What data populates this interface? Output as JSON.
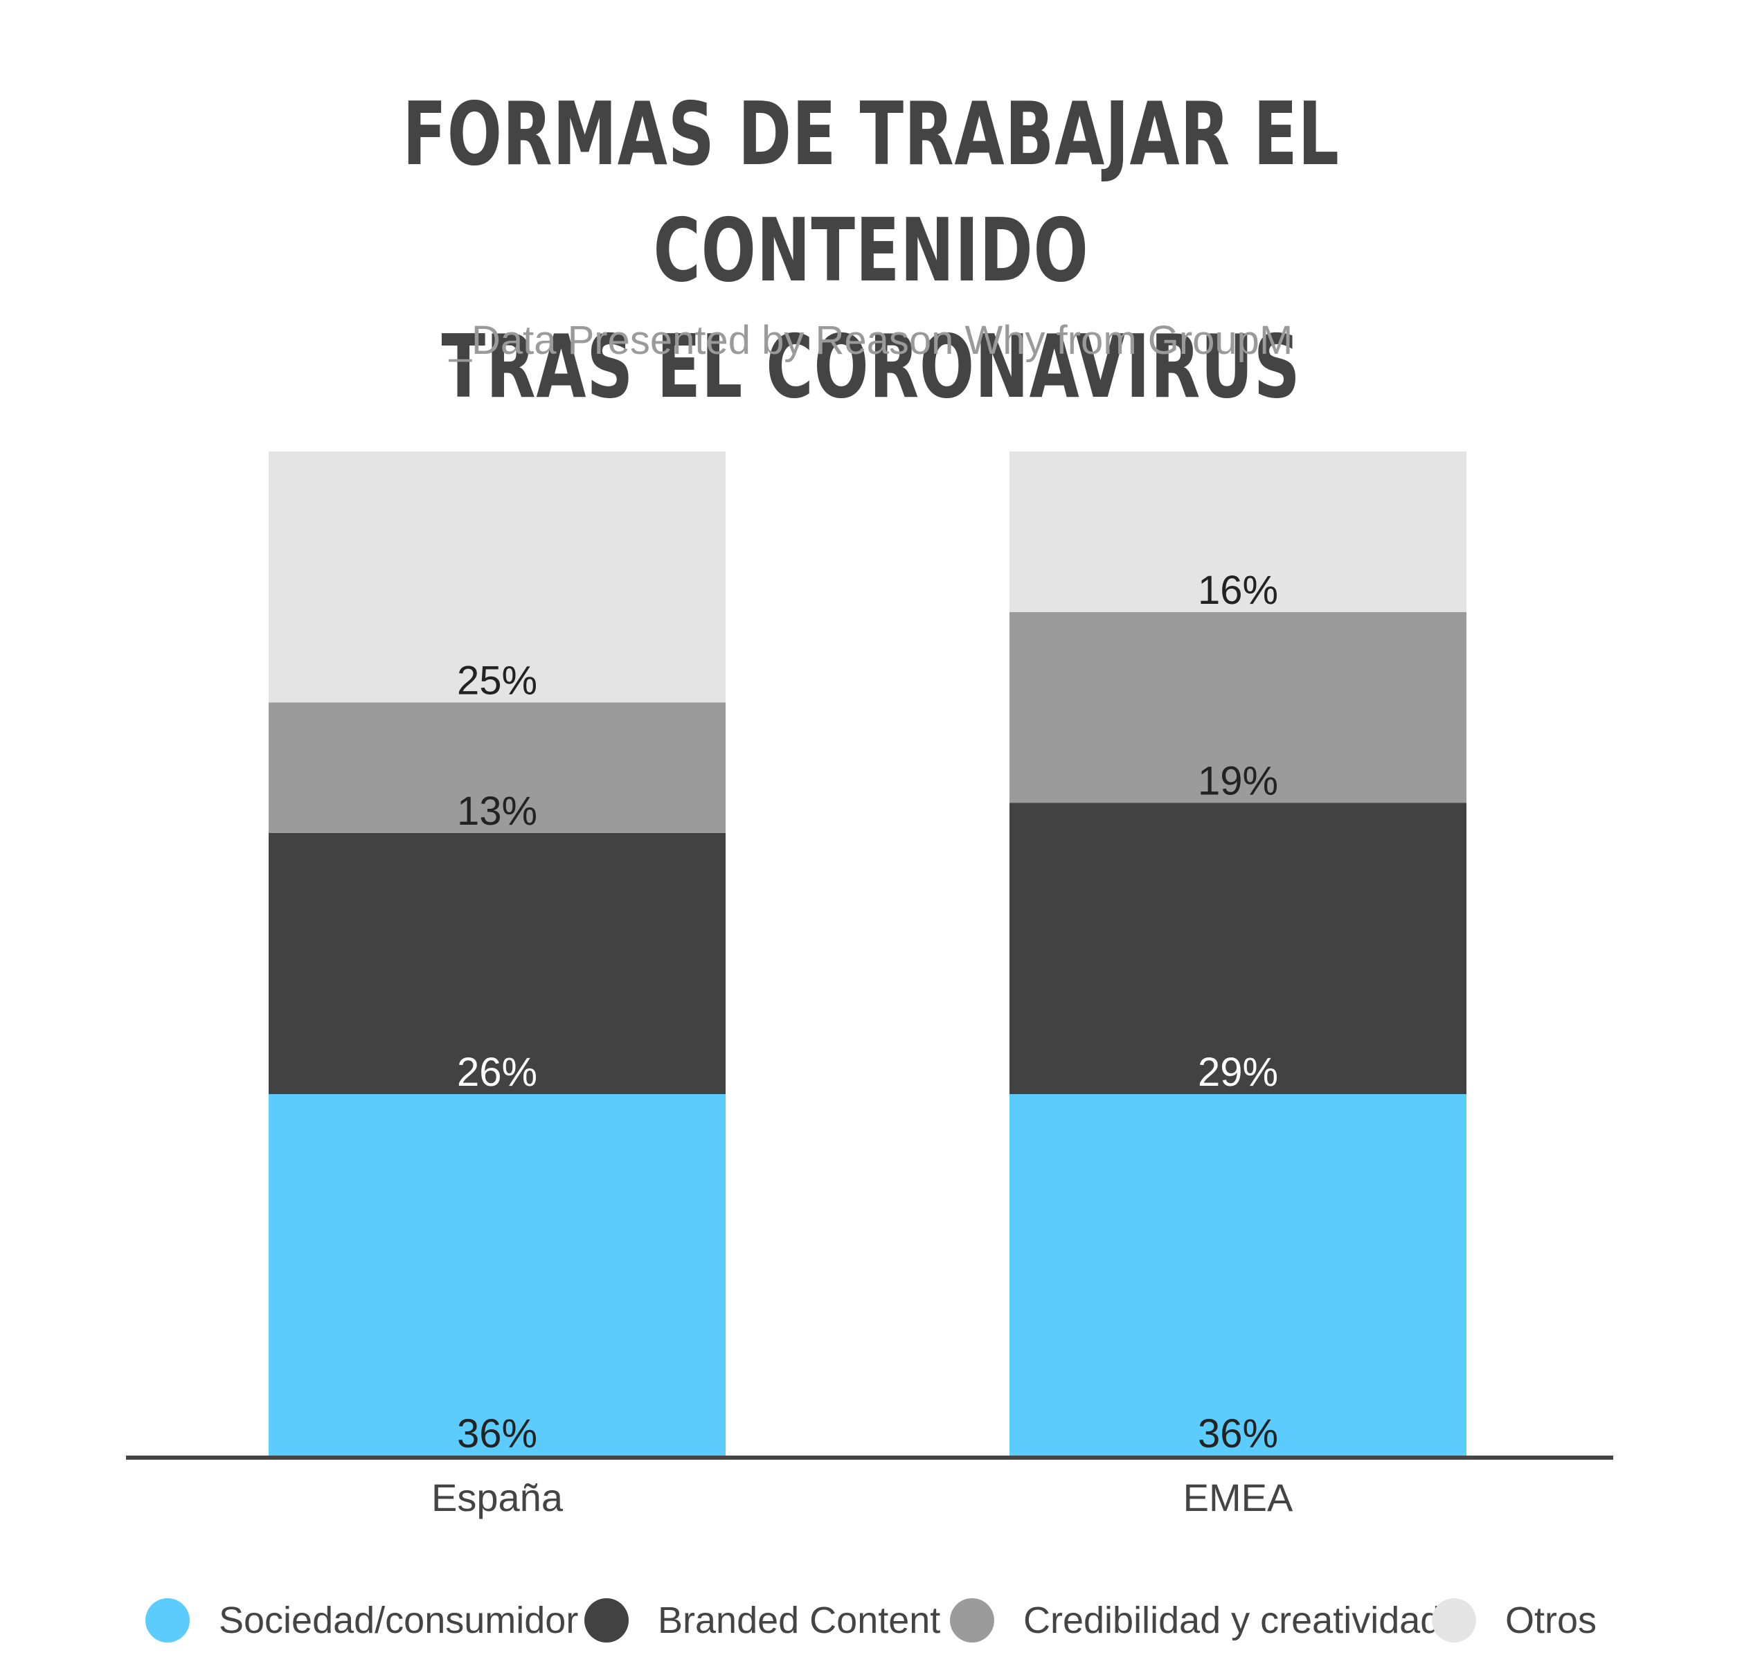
{
  "chart_data": {
    "type": "bar",
    "stacked": true,
    "title_lines": [
      "FORMAS DE TRABAJAR EL CONTENIDO",
      "TRAS EL CORONAVIRUS"
    ],
    "subtitle": "_Data Presented by Reason Why from GroupM",
    "categories": [
      "España",
      "EMEA"
    ],
    "series": [
      {
        "name": "Sociedad/consumidor",
        "color": "#5bccfd",
        "values": [
          36,
          36
        ],
        "labels": [
          "36%",
          "36%"
        ],
        "label_color": "#222222"
      },
      {
        "name": "Branded Content",
        "color": "#424242",
        "values": [
          26,
          29
        ],
        "labels": [
          "26%",
          "29%"
        ],
        "label_color": "#ffffff"
      },
      {
        "name": "Credibilidad y creatividad",
        "color": "#9b9b9b",
        "values": [
          13,
          19
        ],
        "labels": [
          "13%",
          "19%"
        ],
        "label_color": "#222222"
      },
      {
        "name": "Otros",
        "color": "#e4e4e4",
        "values": [
          25,
          16
        ],
        "labels": [
          "25%",
          "16%"
        ],
        "label_color": "#222222"
      }
    ],
    "ylim": [
      0,
      100
    ],
    "grid": false,
    "legend_position": "bottom"
  }
}
